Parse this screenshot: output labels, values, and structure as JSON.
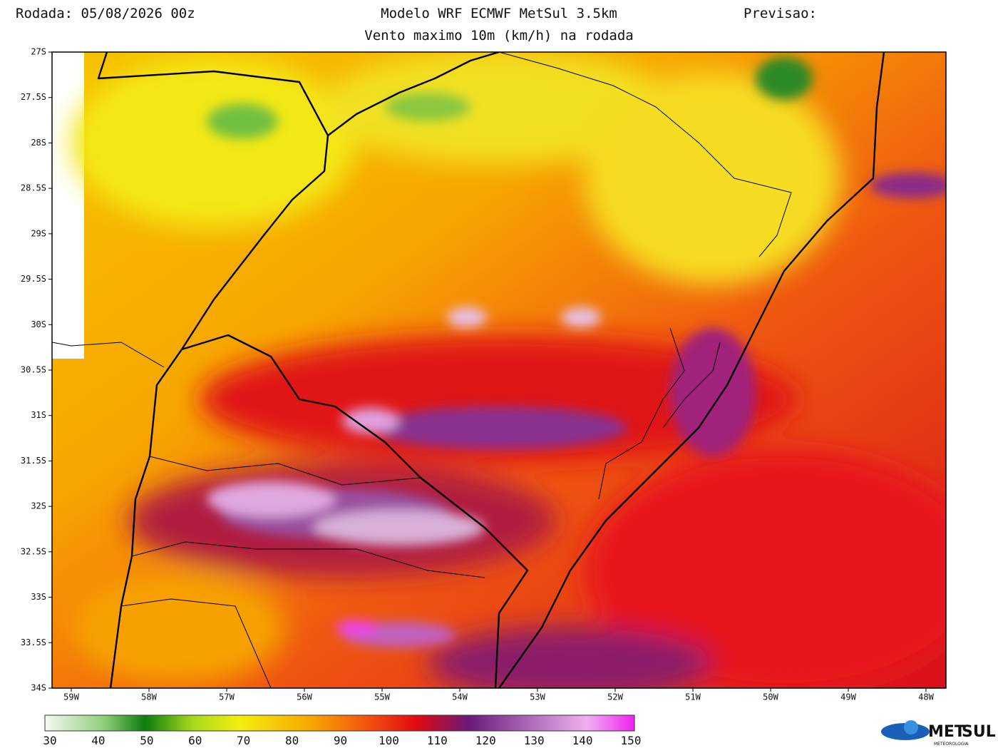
{
  "header": {
    "run": "Rodada: 05/08/2026 00z",
    "model": "Modelo WRF ECMWF MetSul 3.5km",
    "subtitle": "Vento maximo 10m (km/h) na rodada",
    "forecast": "Previsao:"
  },
  "map": {
    "lat_labels": [
      "27S",
      "27.5S",
      "28S",
      "28.5S",
      "29S",
      "29.5S",
      "30S",
      "30.5S",
      "31S",
      "31.5S",
      "32S",
      "32.5S",
      "33S",
      "33.5S",
      "34S"
    ],
    "lon_labels": [
      "59W",
      "58W",
      "57W",
      "56W",
      "55W",
      "54W",
      "53W",
      "52W",
      "51W",
      "50W",
      "49W",
      "48W"
    ]
  },
  "colorbar": {
    "labels": [
      "30",
      "40",
      "50",
      "60",
      "70",
      "80",
      "90",
      "100",
      "110",
      "120",
      "130",
      "140",
      "150"
    ]
  },
  "logo": {
    "name_a": "MET",
    "name_b": "SUL",
    "tagline": "METEOROLOGIA"
  }
}
